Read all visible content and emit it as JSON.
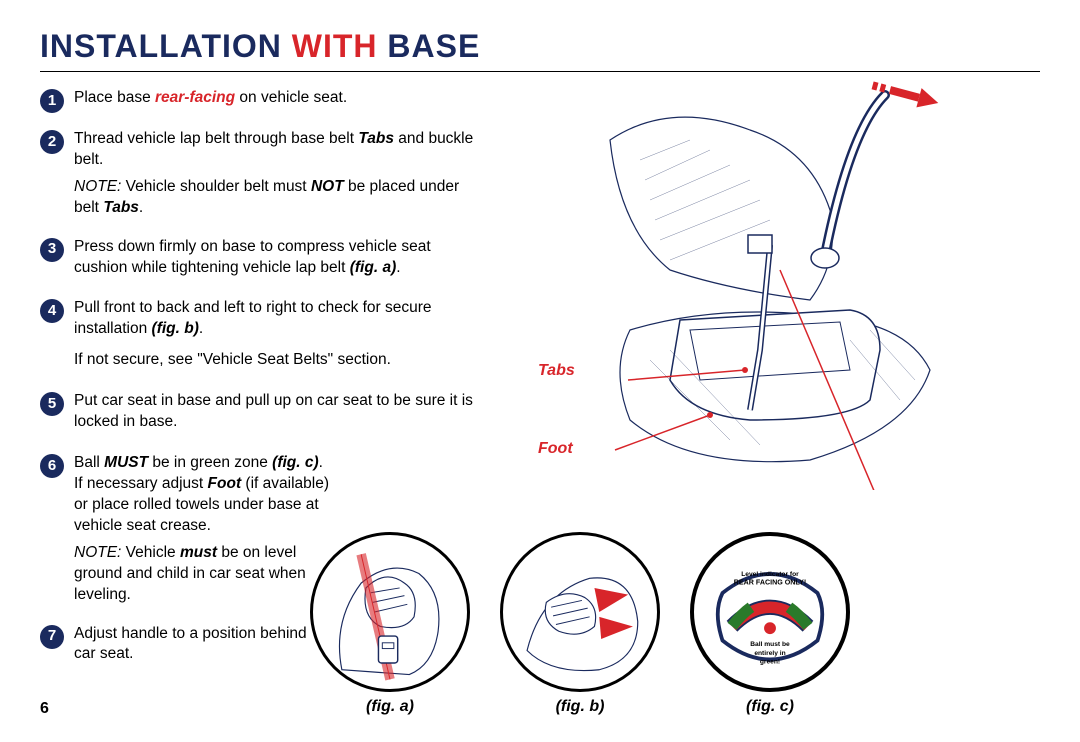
{
  "colors": {
    "navy": "#1a2a5e",
    "red": "#d8252a",
    "black": "#000000",
    "white": "#ffffff"
  },
  "typography": {
    "title_fontsize": 32,
    "body_fontsize": 15.5,
    "callout_fontsize": 16
  },
  "title": {
    "pre": "Installation ",
    "highlight": "With",
    "post": " Base"
  },
  "steps": [
    {
      "num": "1",
      "html": "Place base <span class='em-red'>rear-facing</span> on vehicle seat."
    },
    {
      "num": "2",
      "html": "Thread vehicle lap belt through base belt <span class='boldit'>Tabs</span> and buckle belt.",
      "note_html": "<span class='note-prefix'>NOTE:</span>  Vehicle shoulder belt must <span class='boldit'>NOT</span>  be placed under belt <span class='boldit'>Tabs</span>."
    },
    {
      "num": "3",
      "html": "Press down firmly on base to compress vehicle seat cushion while tightening vehicle lap belt <span class='boldit'>(fig. a)</span>."
    },
    {
      "num": "4",
      "html": "Pull front to back and left to right to check for secure installation <span class='boldit'>(fig. b)</span>.",
      "after_html": "If not secure, see \"Vehicle Seat Belts\" section."
    },
    {
      "num": "5",
      "html": "Put car seat in base and pull up on car seat to be sure it is locked in base."
    },
    {
      "num": "6",
      "html": "Ball <span class='boldit'>MUST</span> be in green zone <span class='boldit'>(fig. c)</span>.  If necessary adjust <span class='boldit'>Foot</span> (if available) or place rolled towels under base at vehicle seat crease.",
      "note_html": "<span class='note-prefix'>NOTE:</span>  Vehicle <span class='boldit'>must</span> be on level ground and child in car seat when leveling."
    },
    {
      "num": "7",
      "html": "Adjust handle to a position behind car seat."
    }
  ],
  "callouts": {
    "tabs": "Tabs",
    "foot": "Foot"
  },
  "figures": {
    "a": "(fig. a)",
    "b": "(fig. b)",
    "c": "(fig. c)"
  },
  "fig_c_text": {
    "top1": "Level indicator for",
    "top2": "REAR FACING ONLY!",
    "bot1": "Ball must be",
    "bot2": "entirely in",
    "bot3": "green!"
  },
  "page_number": "6"
}
